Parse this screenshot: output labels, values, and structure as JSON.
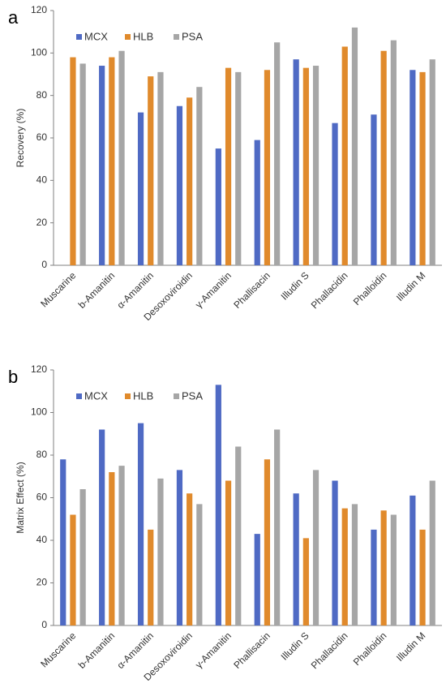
{
  "chart_data": [
    {
      "type": "bar",
      "panel_label": "a",
      "title": "",
      "xlabel": "",
      "ylabel": "Recovery (%)",
      "ylim": [
        0,
        120
      ],
      "yticks": [
        0,
        20,
        40,
        60,
        80,
        100,
        120
      ],
      "categories": [
        "Muscarine",
        "b-Amanitin",
        "α-Amanitin",
        "Desoxoviroidin",
        "γ-Amanitin",
        "Phallisacin",
        "Illudin S",
        "Phallacidin",
        "Phalloidin",
        "Illudin M"
      ],
      "series": [
        {
          "name": "MCX",
          "color": "#4f6ac4",
          "values": [
            0,
            94,
            72,
            75,
            55,
            59,
            97,
            67,
            71,
            92
          ]
        },
        {
          "name": "HLB",
          "color": "#e08a2c",
          "values": [
            98,
            98,
            89,
            79,
            93,
            92,
            93,
            103,
            101,
            91
          ]
        },
        {
          "name": "PSA",
          "color": "#a6a6a6",
          "values": [
            95,
            101,
            91,
            84,
            91,
            105,
            94,
            112,
            106,
            97
          ]
        }
      ],
      "grid": false,
      "legend_position": "top-left"
    },
    {
      "type": "bar",
      "panel_label": "b",
      "title": "",
      "xlabel": "",
      "ylabel": "Matrix Effect (%)",
      "ylim": [
        0,
        120
      ],
      "yticks": [
        0,
        20,
        40,
        60,
        80,
        100,
        120
      ],
      "categories": [
        "Muscarine",
        "b-Amanitin",
        "α-Amanitin",
        "Desoxoviroidin",
        "γ-Amanitin",
        "Phallisacin",
        "Illudin S",
        "Phallacidin",
        "Phalloidin",
        "Illudin M"
      ],
      "series": [
        {
          "name": "MCX",
          "color": "#4f6ac4",
          "values": [
            78,
            92,
            95,
            73,
            113,
            43,
            62,
            68,
            45,
            61
          ]
        },
        {
          "name": "HLB",
          "color": "#e08a2c",
          "values": [
            52,
            72,
            45,
            62,
            68,
            78,
            41,
            55,
            54,
            45
          ]
        },
        {
          "name": "PSA",
          "color": "#a6a6a6",
          "values": [
            64,
            75,
            69,
            57,
            84,
            92,
            73,
            57,
            52,
            68
          ]
        }
      ],
      "grid": false,
      "legend_position": "top-left"
    }
  ]
}
